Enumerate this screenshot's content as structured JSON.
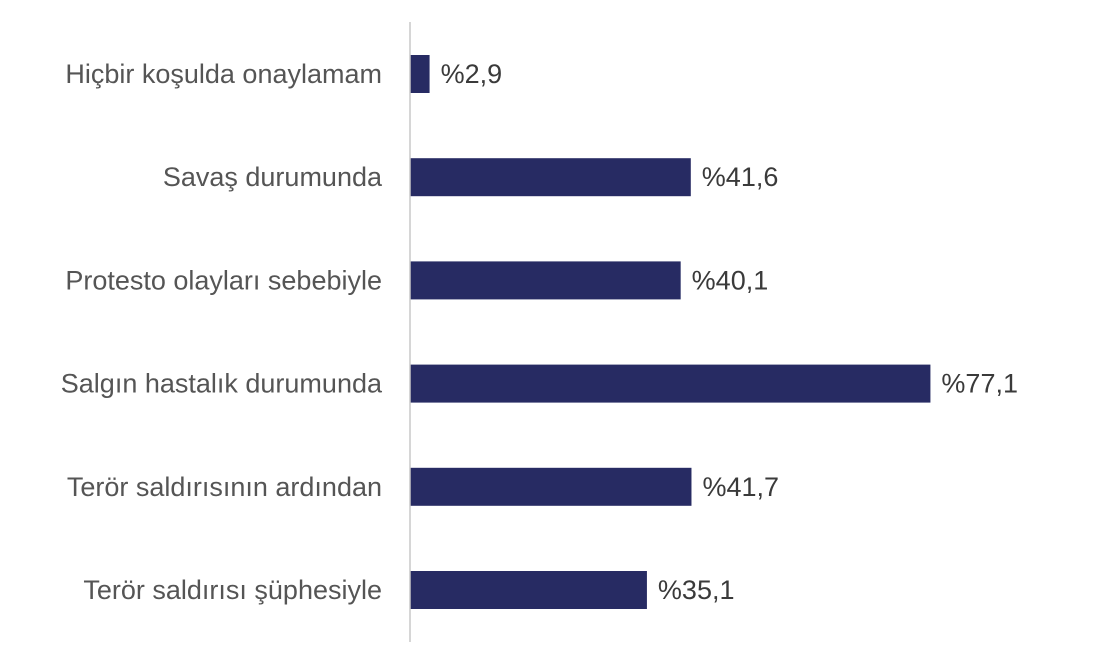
{
  "chart_data": {
    "type": "bar",
    "orientation": "horizontal",
    "categories": [
      "Hiçbir koşulda onaylamam",
      "Savaş durumunda",
      "Protesto olayları sebebiyle",
      "Salgın hastalık durumunda",
      "Terör saldırısının ardından",
      "Terör saldırısı şüphesiyle"
    ],
    "values": [
      2.9,
      41.6,
      40.1,
      77.1,
      41.7,
      35.1
    ],
    "value_labels": [
      "%2,9",
      "%41,6",
      "%40,1",
      "%77,1",
      "%41,7",
      "%35,1"
    ],
    "xlim": [
      0,
      100
    ],
    "bar_color": "#272b63",
    "axis_color": "#c8c8c8",
    "grid": false,
    "legend": "none"
  }
}
